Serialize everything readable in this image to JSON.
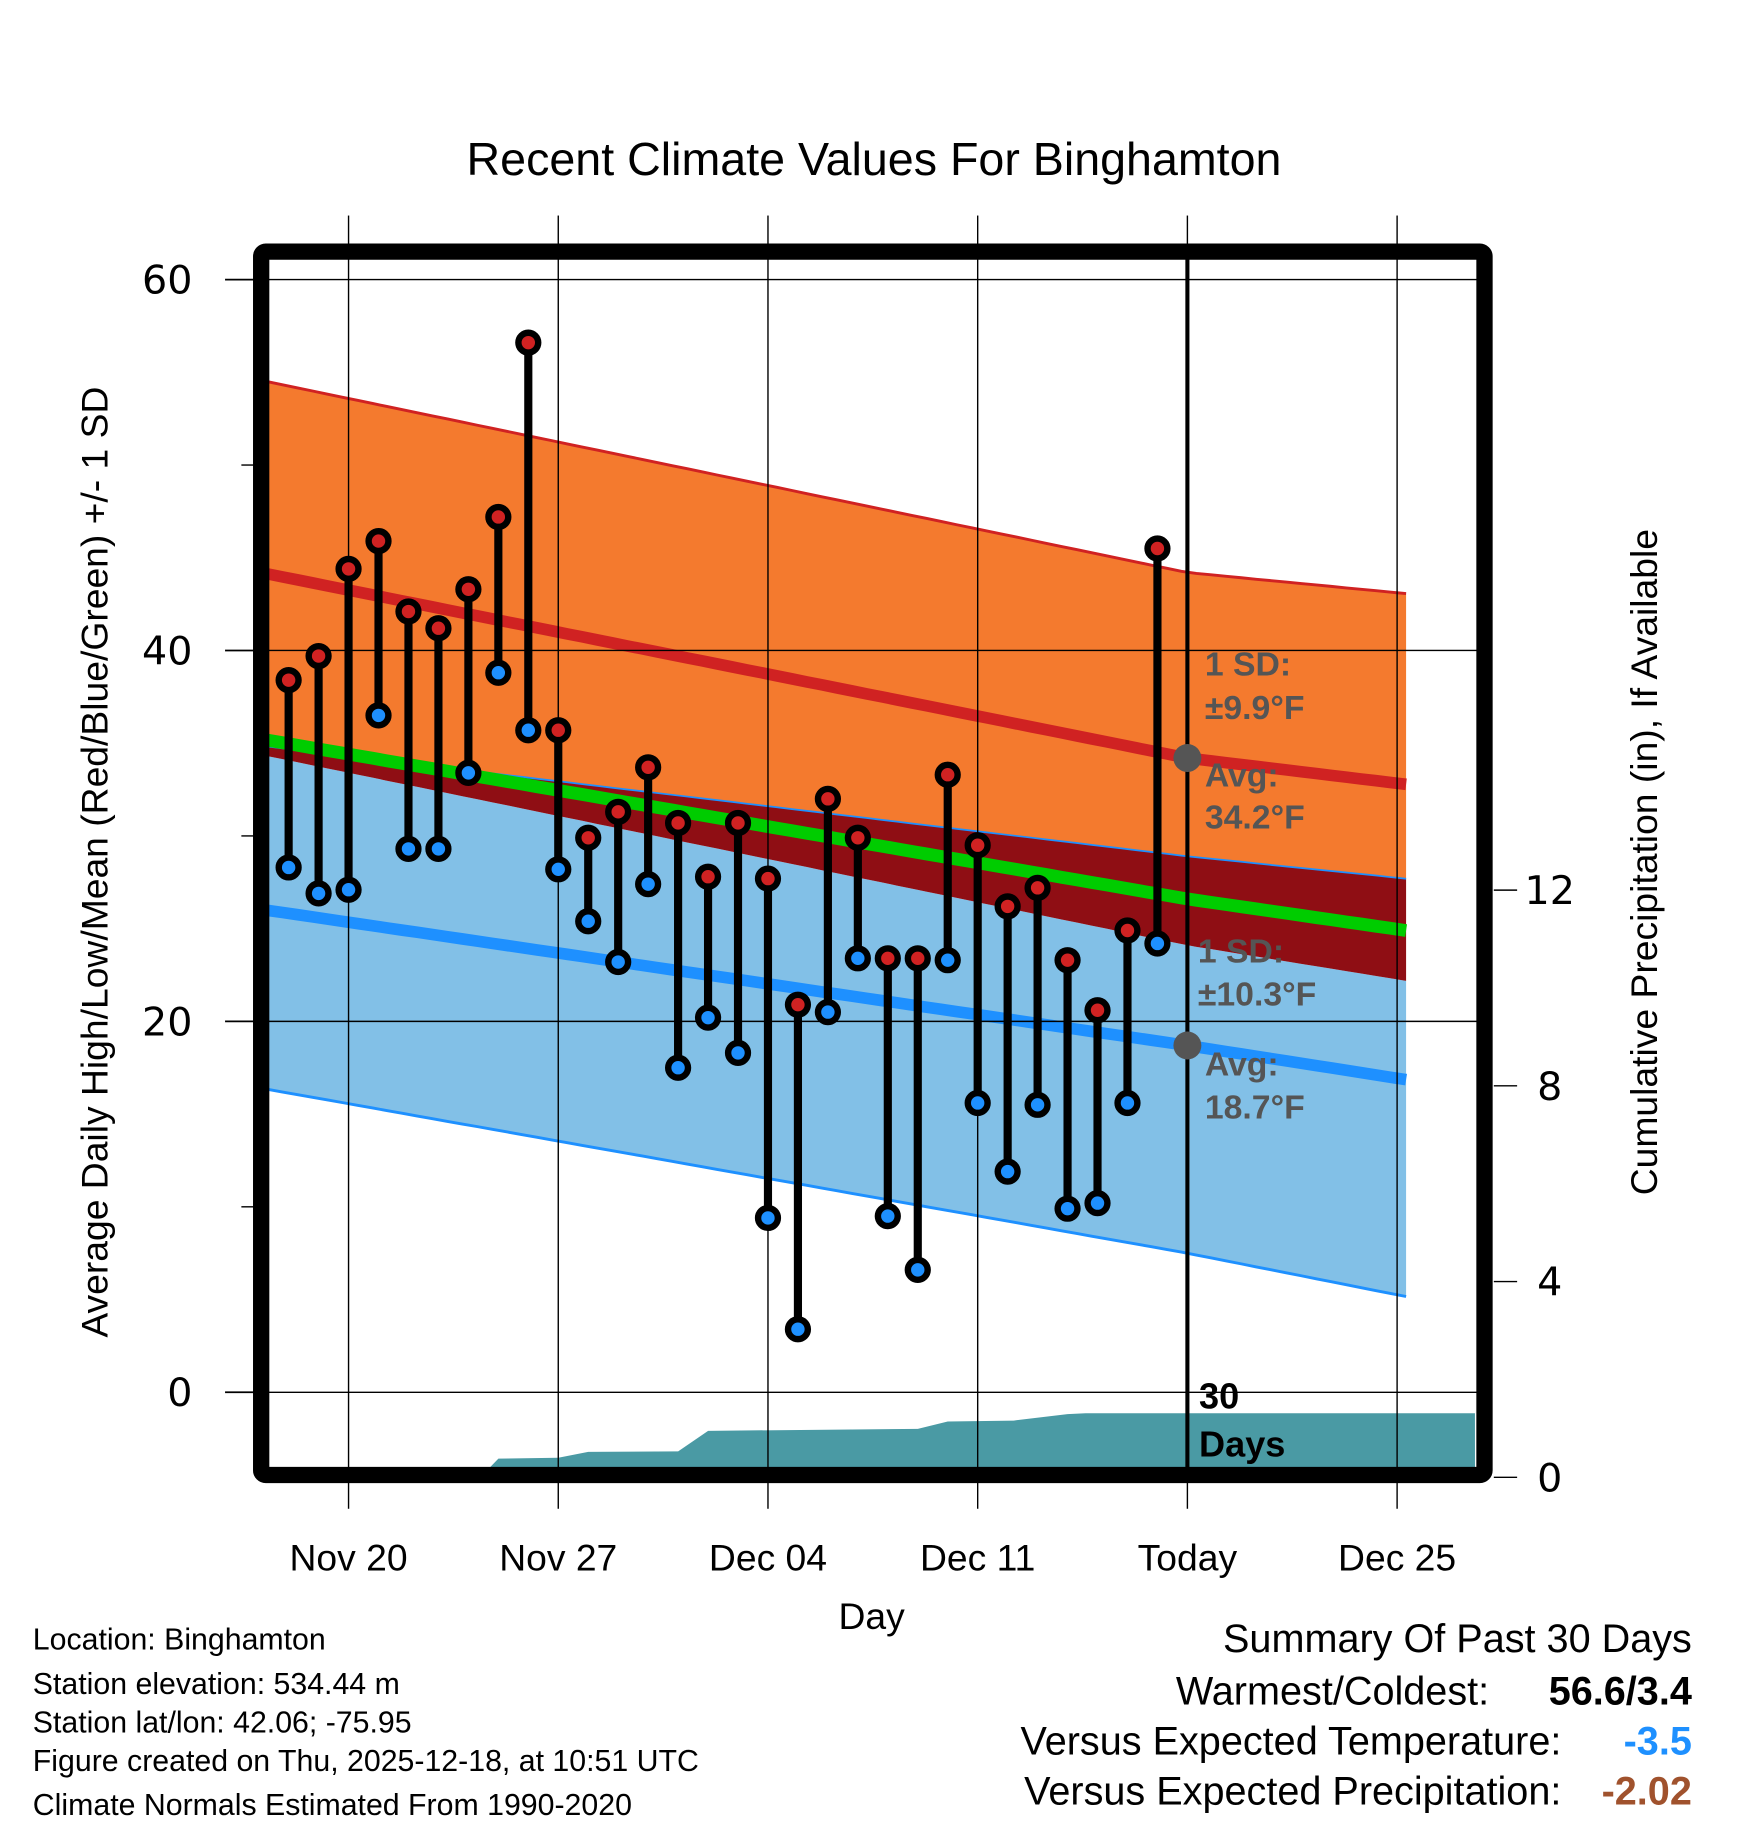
{
  "chart_data": {
    "type": "line",
    "title": "Recent Climate Values For Binghamton",
    "xlabel": "Day",
    "ylabel": "Average Daily High/Low/Mean (Red/Blue/Green) +/- 1 SD",
    "y2label": "Cumulative Precipitation (in), If Available",
    "ylim": [
      -4.5,
      61.5
    ],
    "yticks": [
      0,
      20,
      40,
      60
    ],
    "yticks_minor": [
      10,
      30,
      50
    ],
    "y2lim": [
      0,
      17.5
    ],
    "y2ticks": [
      0,
      4,
      8,
      12
    ],
    "x_day_range": [
      -3.6,
      37.8
    ],
    "x_day_origin": "Nov 17",
    "xticks": [
      {
        "day": 3,
        "label": "Nov 20"
      },
      {
        "day": 10,
        "label": "Nov 27"
      },
      {
        "day": 17,
        "label": "Dec 04"
      },
      {
        "day": 24,
        "label": "Dec 11"
      },
      {
        "day": 31,
        "label": "Today"
      },
      {
        "day": 38,
        "label": "Dec 25"
      }
    ],
    "today_day": 31,
    "grid": true,
    "normals": {
      "x_days": [
        -2.7,
        31,
        41.3
      ],
      "high_plus_sd": [
        55.5,
        44.2,
        42.6
      ],
      "high_avg": [
        45.1,
        34.2,
        32.2
      ],
      "high_minus_sd": [
        35.4,
        28.9,
        27.2
      ],
      "mean": [
        36.0,
        26.6,
        24.2
      ],
      "low_plus_sd": [
        35.3,
        24.1,
        21.4
      ],
      "low_avg": [
        26.7,
        18.7,
        16.1
      ],
      "low_minus_sd": [
        17.2,
        7.5,
        4.2
      ]
    },
    "daily": {
      "dates": [
        "Nov 18",
        "Nov 19",
        "Nov 20",
        "Nov 21",
        "Nov 22",
        "Nov 23",
        "Nov 24",
        "Nov 25",
        "Nov 26",
        "Nov 27",
        "Nov 28",
        "Nov 29",
        "Nov 30",
        "Dec 01",
        "Dec 02",
        "Dec 03",
        "Dec 04",
        "Dec 05",
        "Dec 06",
        "Dec 07",
        "Dec 08",
        "Dec 09",
        "Dec 10",
        "Dec 11",
        "Dec 12",
        "Dec 13",
        "Dec 14",
        "Dec 15",
        "Dec 16",
        "Dec 17"
      ],
      "high": [
        38.4,
        39.7,
        44.4,
        45.9,
        42.1,
        41.2,
        43.3,
        47.2,
        56.6,
        35.7,
        29.9,
        31.3,
        33.7,
        30.7,
        27.8,
        30.7,
        27.7,
        20.9,
        32.0,
        29.9,
        23.4,
        23.4,
        33.3,
        29.5,
        26.2,
        27.2,
        23.3,
        20.6,
        24.9,
        45.5
      ],
      "low": [
        28.3,
        26.9,
        27.1,
        36.5,
        29.3,
        29.3,
        33.4,
        38.8,
        35.7,
        28.2,
        25.4,
        23.2,
        27.4,
        17.5,
        20.2,
        18.3,
        9.4,
        3.4,
        20.5,
        23.4,
        9.5,
        6.6,
        23.3,
        15.6,
        11.9,
        15.5,
        9.9,
        10.2,
        15.6,
        24.2
      ]
    },
    "precipitation": {
      "x_days": [
        -3.6,
        7.4,
        8.0,
        10.0,
        11.0,
        14.0,
        15.0,
        22.0,
        23.0,
        25.2,
        27.0,
        27.6,
        40.6
      ],
      "cumulative_in": [
        0,
        0,
        0.38,
        0.4,
        0.52,
        0.53,
        0.95,
        0.99,
        1.14,
        1.16,
        1.29,
        1.31,
        1.31
      ]
    },
    "annotations": {
      "high_sd": "1 SD:",
      "high_sd_value": "±9.9°F",
      "high_avg": "Avg:",
      "high_avg_value": "34.2°F",
      "low_sd": "1 SD:",
      "low_sd_value": "±10.3°F",
      "low_avg": "Avg:",
      "low_avg_value": "18.7°F",
      "days_line1": "30",
      "days_line2": "Days"
    },
    "colors": {
      "high_band": "#F47A2E",
      "high_line": "#D02222",
      "overlap_band": "#8F0E14",
      "mean_line": "#00CC00",
      "low_band": "#82C0E7",
      "low_line": "#1E90FF",
      "precip": "#4A9AA4",
      "high_marker": "#D02222",
      "low_marker": "#1E90FF",
      "annotation": "#555555"
    }
  },
  "footer": {
    "location": "Location: Binghamton",
    "elevation": "Station elevation: 534.44 m",
    "latlon": "Station lat/lon: 42.06; -75.95",
    "created": "Figure created on Thu, 2025-12-18, at 10:51 UTC",
    "normals": "Climate Normals Estimated From 1990-2020"
  },
  "summary": {
    "title": "Summary Of Past 30 Days",
    "warmest_coldest_label": "Warmest/Coldest:",
    "warmest_coldest_value": "56.6/3.4",
    "temp_label": "Versus Expected Temperature:",
    "temp_value": "-3.5",
    "temp_color": "#1E90FF",
    "precip_label": "Versus Expected Precipitation:",
    "precip_value": "-2.02",
    "precip_color": "#A0522D"
  }
}
